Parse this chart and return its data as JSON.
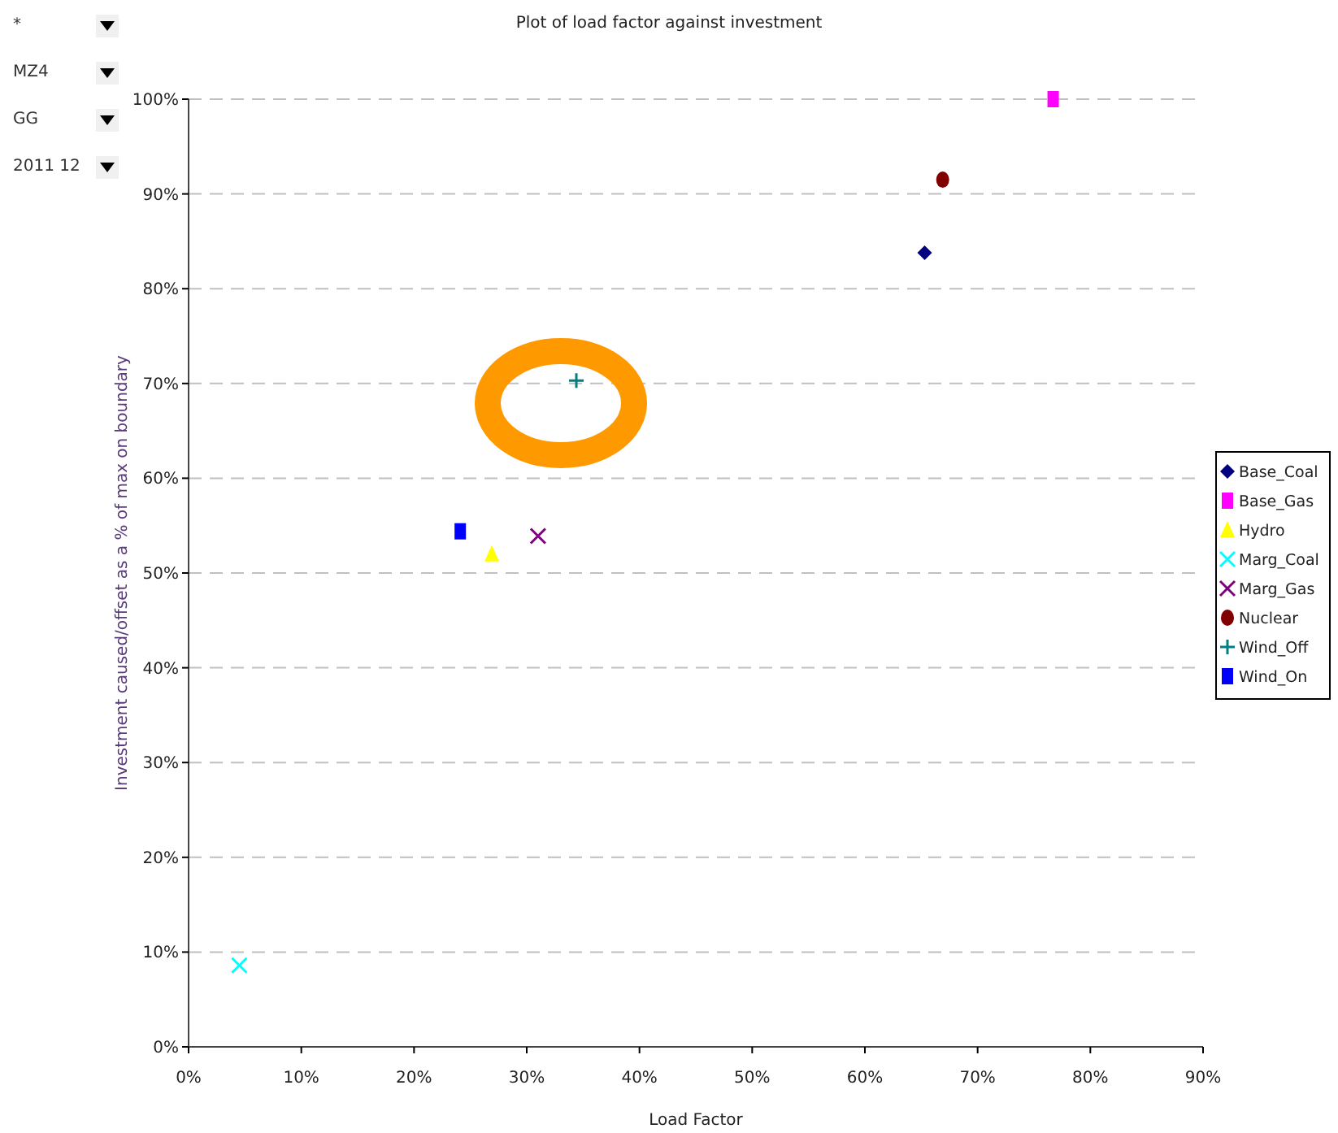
{
  "chart_data": {
    "type": "scatter",
    "title": "Plot of load factor against investment",
    "xlabel": "Load Factor",
    "ylabel": "Investment caused/offset as a % of max on boundary",
    "annotations": [
      "*",
      "MZ4",
      "GG",
      "2011 12"
    ],
    "xlim": [
      0,
      90
    ],
    "ylim": [
      0,
      100
    ],
    "xticks": [
      {
        "value": 0,
        "label": "0%"
      },
      {
        "value": 10,
        "label": "10%"
      },
      {
        "value": 20,
        "label": "20%"
      },
      {
        "value": 30,
        "label": "30%"
      },
      {
        "value": 40,
        "label": "40%"
      },
      {
        "value": 50,
        "label": "50%"
      },
      {
        "value": 60,
        "label": "60%"
      },
      {
        "value": 70,
        "label": "70%"
      },
      {
        "value": 80,
        "label": "80%"
      },
      {
        "value": 90,
        "label": "90%"
      }
    ],
    "yticks": [
      {
        "value": 0,
        "label": "0%"
      },
      {
        "value": 10,
        "label": "10%"
      },
      {
        "value": 20,
        "label": "20%"
      },
      {
        "value": 30,
        "label": "30%"
      },
      {
        "value": 40,
        "label": "40%"
      },
      {
        "value": 50,
        "label": "50%"
      },
      {
        "value": 60,
        "label": "60%"
      },
      {
        "value": 70,
        "label": "70%"
      },
      {
        "value": 80,
        "label": "80%"
      },
      {
        "value": 90,
        "label": "90%"
      },
      {
        "value": 100,
        "label": "100%"
      }
    ],
    "grid": "y",
    "legend": "right",
    "series": [
      {
        "name": "Base_Coal",
        "color": "#000080",
        "marker": "diamond",
        "x": [
          65.3
        ],
        "values": [
          83.8
        ]
      },
      {
        "name": "Base_Gas",
        "color": "#ff00ff",
        "marker": "square",
        "x": [
          76.7
        ],
        "values": [
          100
        ]
      },
      {
        "name": "Hydro",
        "color": "#ffff00",
        "marker": "triangle",
        "x": [
          26.9
        ],
        "values": [
          52
        ]
      },
      {
        "name": "Marg_Coal",
        "color": "#00ffff",
        "marker": "cross",
        "x": [
          4.5
        ],
        "values": [
          8.6
        ]
      },
      {
        "name": "Marg_Gas",
        "color": "#800080",
        "marker": "cross",
        "x": [
          31
        ],
        "values": [
          53.9
        ]
      },
      {
        "name": "Nuclear",
        "color": "#800000",
        "marker": "circle",
        "x": [
          66.9
        ],
        "values": [
          91.5
        ]
      },
      {
        "name": "Wind_Off",
        "color": "#008080",
        "marker": "plus",
        "x": [
          34.4
        ],
        "values": [
          70.3
        ]
      },
      {
        "name": "Wind_On",
        "color": "#0000ff",
        "marker": "square",
        "x": [
          24.1
        ],
        "values": [
          54.4
        ]
      }
    ]
  }
}
